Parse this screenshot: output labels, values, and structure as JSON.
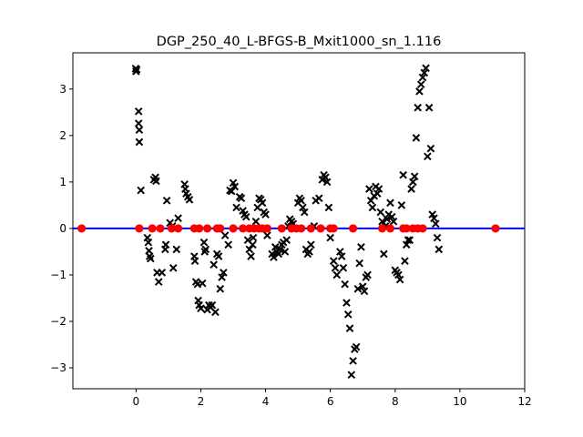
{
  "chart_data": {
    "type": "scatter",
    "title": "DGP_250_40_L-BFGS-B_Mxit1000_sn_1.116",
    "xlabel": "",
    "ylabel": "",
    "xlim": [
      -1.95,
      12.0
    ],
    "ylim": [
      -3.45,
      3.78
    ],
    "xticks": [
      0,
      2,
      4,
      6,
      8,
      10,
      12
    ],
    "yticks": [
      -3,
      -2,
      -1,
      0,
      1,
      2,
      3
    ],
    "grid": false,
    "colors": {
      "cross": "#000000",
      "zero_line": "#0000ff",
      "dots": "#ff0000"
    },
    "zero_line": {
      "y": 0
    },
    "series": [
      {
        "marker": "x",
        "points": [
          [
            -0.01,
            3.44
          ],
          [
            0.0,
            3.38
          ],
          [
            0.02,
            3.42
          ],
          [
            0.08,
            2.52
          ],
          [
            0.08,
            2.26
          ],
          [
            0.1,
            2.12
          ],
          [
            0.1,
            1.86
          ],
          [
            0.15,
            0.82
          ],
          [
            0.35,
            -0.2
          ],
          [
            0.38,
            -0.3
          ],
          [
            0.4,
            -0.48
          ],
          [
            0.42,
            -0.6
          ],
          [
            0.45,
            -0.65
          ],
          [
            0.55,
            1.05
          ],
          [
            0.6,
            1.1
          ],
          [
            0.62,
            1.02
          ],
          [
            0.65,
            -0.95
          ],
          [
            0.7,
            -1.15
          ],
          [
            0.8,
            -0.95
          ],
          [
            0.9,
            -0.45
          ],
          [
            0.92,
            -0.35
          ],
          [
            0.95,
            0.6
          ],
          [
            1.05,
            0.12
          ],
          [
            1.12,
            0.05
          ],
          [
            1.15,
            -0.85
          ],
          [
            1.25,
            -0.45
          ],
          [
            1.3,
            0.22
          ],
          [
            1.5,
            0.95
          ],
          [
            1.52,
            0.85
          ],
          [
            1.55,
            0.75
          ],
          [
            1.6,
            0.68
          ],
          [
            1.65,
            0.62
          ],
          [
            1.8,
            -0.6
          ],
          [
            1.82,
            -0.7
          ],
          [
            1.85,
            -1.15
          ],
          [
            1.9,
            -1.2
          ],
          [
            1.92,
            -1.55
          ],
          [
            1.95,
            -1.65
          ],
          [
            2.0,
            -1.72
          ],
          [
            2.05,
            -1.18
          ],
          [
            2.1,
            -0.3
          ],
          [
            2.12,
            -0.5
          ],
          [
            2.15,
            -0.45
          ],
          [
            2.2,
            -1.75
          ],
          [
            2.25,
            -1.65
          ],
          [
            2.3,
            -1.7
          ],
          [
            2.35,
            -1.65
          ],
          [
            2.4,
            -0.78
          ],
          [
            2.45,
            -1.8
          ],
          [
            2.5,
            -0.55
          ],
          [
            2.55,
            -0.6
          ],
          [
            2.6,
            -1.3
          ],
          [
            2.65,
            -1.05
          ],
          [
            2.7,
            -0.95
          ],
          [
            2.75,
            -0.15
          ],
          [
            2.85,
            -0.35
          ],
          [
            2.9,
            0.82
          ],
          [
            2.95,
            0.8
          ],
          [
            3.0,
            0.98
          ],
          [
            3.05,
            0.9
          ],
          [
            3.1,
            0.45
          ],
          [
            3.2,
            0.68
          ],
          [
            3.25,
            0.65
          ],
          [
            3.3,
            0.38
          ],
          [
            3.35,
            0.3
          ],
          [
            3.4,
            0.25
          ],
          [
            3.45,
            -0.25
          ],
          [
            3.5,
            -0.45
          ],
          [
            3.55,
            -0.6
          ],
          [
            3.6,
            -0.35
          ],
          [
            3.62,
            -0.2
          ],
          [
            3.7,
            0.15
          ],
          [
            3.75,
            0.45
          ],
          [
            3.8,
            0.65
          ],
          [
            3.85,
            0.62
          ],
          [
            3.9,
            0.55
          ],
          [
            3.95,
            0.35
          ],
          [
            4.0,
            0.3
          ],
          [
            4.05,
            -0.15
          ],
          [
            4.2,
            -0.55
          ],
          [
            4.25,
            -0.62
          ],
          [
            4.3,
            -0.4
          ],
          [
            4.35,
            -0.5
          ],
          [
            4.4,
            -0.55
          ],
          [
            4.45,
            -0.45
          ],
          [
            4.5,
            -0.35
          ],
          [
            4.55,
            -0.3
          ],
          [
            4.6,
            -0.5
          ],
          [
            4.65,
            -0.25
          ],
          [
            4.7,
            0.05
          ],
          [
            4.75,
            0.2
          ],
          [
            4.8,
            0.15
          ],
          [
            4.85,
            0.1
          ],
          [
            5.0,
            0.55
          ],
          [
            5.05,
            0.65
          ],
          [
            5.1,
            0.6
          ],
          [
            5.15,
            0.45
          ],
          [
            5.2,
            0.35
          ],
          [
            5.25,
            -0.45
          ],
          [
            5.3,
            -0.55
          ],
          [
            5.35,
            -0.5
          ],
          [
            5.4,
            -0.35
          ],
          [
            5.5,
            0.05
          ],
          [
            5.55,
            0.6
          ],
          [
            5.65,
            0.65
          ],
          [
            5.75,
            1.05
          ],
          [
            5.8,
            1.15
          ],
          [
            5.85,
            1.1
          ],
          [
            5.9,
            1.0
          ],
          [
            5.95,
            0.45
          ],
          [
            6.0,
            -0.2
          ],
          [
            6.1,
            -0.7
          ],
          [
            6.15,
            -0.85
          ],
          [
            6.2,
            -1.0
          ],
          [
            6.3,
            -0.5
          ],
          [
            6.35,
            -0.6
          ],
          [
            6.4,
            -0.85
          ],
          [
            6.45,
            -1.2
          ],
          [
            6.5,
            -1.6
          ],
          [
            6.55,
            -1.85
          ],
          [
            6.6,
            -2.15
          ],
          [
            6.65,
            -3.15
          ],
          [
            6.7,
            -2.85
          ],
          [
            6.75,
            -2.6
          ],
          [
            6.8,
            -2.55
          ],
          [
            6.85,
            -1.3
          ],
          [
            6.9,
            -0.75
          ],
          [
            6.95,
            -0.4
          ],
          [
            7.0,
            -1.25
          ],
          [
            7.05,
            -1.35
          ],
          [
            7.1,
            -1.05
          ],
          [
            7.15,
            -1.0
          ],
          [
            7.2,
            0.85
          ],
          [
            7.25,
            0.6
          ],
          [
            7.3,
            0.45
          ],
          [
            7.35,
            0.7
          ],
          [
            7.4,
            0.9
          ],
          [
            7.45,
            0.75
          ],
          [
            7.5,
            0.85
          ],
          [
            7.55,
            0.35
          ],
          [
            7.6,
            0.15
          ],
          [
            7.65,
            -0.55
          ],
          [
            7.7,
            0.05
          ],
          [
            7.75,
            0.2
          ],
          [
            7.8,
            0.3
          ],
          [
            7.85,
            0.55
          ],
          [
            7.9,
            0.25
          ],
          [
            7.95,
            0.15
          ],
          [
            8.0,
            -0.9
          ],
          [
            8.05,
            -0.95
          ],
          [
            8.1,
            -1.0
          ],
          [
            8.15,
            -1.1
          ],
          [
            8.2,
            0.5
          ],
          [
            8.25,
            1.15
          ],
          [
            8.3,
            -0.7
          ],
          [
            8.35,
            -0.35
          ],
          [
            8.4,
            -0.25
          ],
          [
            8.45,
            -0.25
          ],
          [
            8.5,
            0.85
          ],
          [
            8.55,
            1.0
          ],
          [
            8.6,
            1.12
          ],
          [
            8.65,
            1.95
          ],
          [
            8.7,
            2.6
          ],
          [
            8.75,
            2.95
          ],
          [
            8.8,
            3.1
          ],
          [
            8.85,
            3.25
          ],
          [
            8.9,
            3.35
          ],
          [
            8.95,
            3.45
          ],
          [
            9.0,
            1.55
          ],
          [
            9.05,
            2.6
          ],
          [
            9.1,
            1.72
          ],
          [
            9.15,
            0.3
          ],
          [
            9.2,
            0.22
          ],
          [
            9.25,
            0.1
          ],
          [
            9.3,
            -0.2
          ],
          [
            9.35,
            -0.45
          ]
        ]
      },
      {
        "marker": "o",
        "points": [
          [
            -1.68,
            0
          ],
          [
            0.1,
            0
          ],
          [
            0.5,
            0
          ],
          [
            0.75,
            0
          ],
          [
            1.1,
            0
          ],
          [
            1.3,
            0
          ],
          [
            1.8,
            0
          ],
          [
            1.95,
            0
          ],
          [
            2.2,
            0
          ],
          [
            2.5,
            0
          ],
          [
            2.6,
            0
          ],
          [
            3.0,
            0
          ],
          [
            3.3,
            0
          ],
          [
            3.5,
            0
          ],
          [
            3.65,
            0
          ],
          [
            3.8,
            0
          ],
          [
            3.9,
            0
          ],
          [
            4.05,
            0
          ],
          [
            4.5,
            0
          ],
          [
            4.8,
            0
          ],
          [
            4.95,
            0
          ],
          [
            5.1,
            0
          ],
          [
            5.4,
            0
          ],
          [
            5.7,
            0
          ],
          [
            6.0,
            0
          ],
          [
            6.1,
            0
          ],
          [
            6.7,
            0
          ],
          [
            7.6,
            0
          ],
          [
            7.85,
            0
          ],
          [
            8.25,
            0
          ],
          [
            8.35,
            0
          ],
          [
            8.55,
            0
          ],
          [
            8.7,
            0
          ],
          [
            8.85,
            0
          ],
          [
            11.1,
            0
          ]
        ]
      }
    ]
  }
}
